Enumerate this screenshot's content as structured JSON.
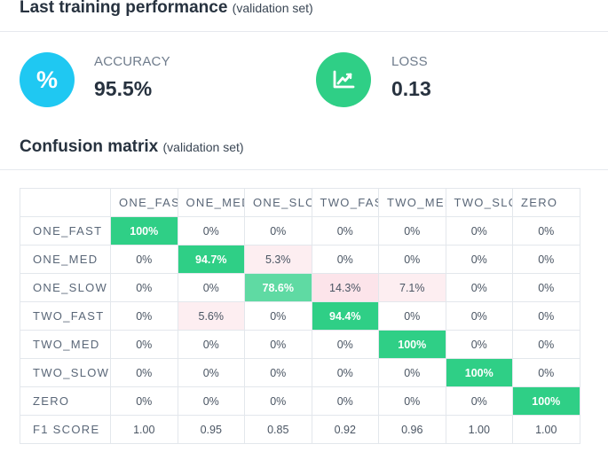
{
  "performance": {
    "title": "Last training performance",
    "subtitle": "(validation set)",
    "accuracy": {
      "label": "ACCURACY",
      "value": "95.5%",
      "icon": "percent-icon",
      "color": "#1fc8f2"
    },
    "loss": {
      "label": "LOSS",
      "value": "0.13",
      "icon": "chart-trend-icon",
      "color": "#2fcf86"
    }
  },
  "confusion": {
    "title": "Confusion matrix",
    "subtitle": "(validation set)",
    "columns": [
      "ONE_FAST",
      "ONE_MED",
      "ONE_SLOW",
      "TWO_FAST",
      "TWO_MED",
      "TWO_SLOW",
      "ZERO"
    ],
    "rows": [
      {
        "label": "ONE_FAST",
        "cells": [
          "100%",
          "0%",
          "0%",
          "0%",
          "0%",
          "0%",
          "0%"
        ]
      },
      {
        "label": "ONE_MED",
        "cells": [
          "0%",
          "94.7%",
          "5.3%",
          "0%",
          "0%",
          "0%",
          "0%"
        ]
      },
      {
        "label": "ONE_SLOW",
        "cells": [
          "0%",
          "0%",
          "78.6%",
          "14.3%",
          "7.1%",
          "0%",
          "0%"
        ]
      },
      {
        "label": "TWO_FAST",
        "cells": [
          "0%",
          "5.6%",
          "0%",
          "94.4%",
          "0%",
          "0%",
          "0%"
        ]
      },
      {
        "label": "TWO_MED",
        "cells": [
          "0%",
          "0%",
          "0%",
          "0%",
          "100%",
          "0%",
          "0%"
        ]
      },
      {
        "label": "TWO_SLOW",
        "cells": [
          "0%",
          "0%",
          "0%",
          "0%",
          "0%",
          "100%",
          "0%"
        ]
      },
      {
        "label": "ZERO",
        "cells": [
          "0%",
          "0%",
          "0%",
          "0%",
          "0%",
          "0%",
          "100%"
        ]
      }
    ],
    "f1": {
      "label": "F1 SCORE",
      "cells": [
        "1.00",
        "0.95",
        "0.85",
        "0.92",
        "0.96",
        "1.00",
        "1.00"
      ]
    },
    "colors": {
      "diagonal": "#2fcf86",
      "partial": "#5fdaa3",
      "error": "#fdeef1"
    }
  }
}
